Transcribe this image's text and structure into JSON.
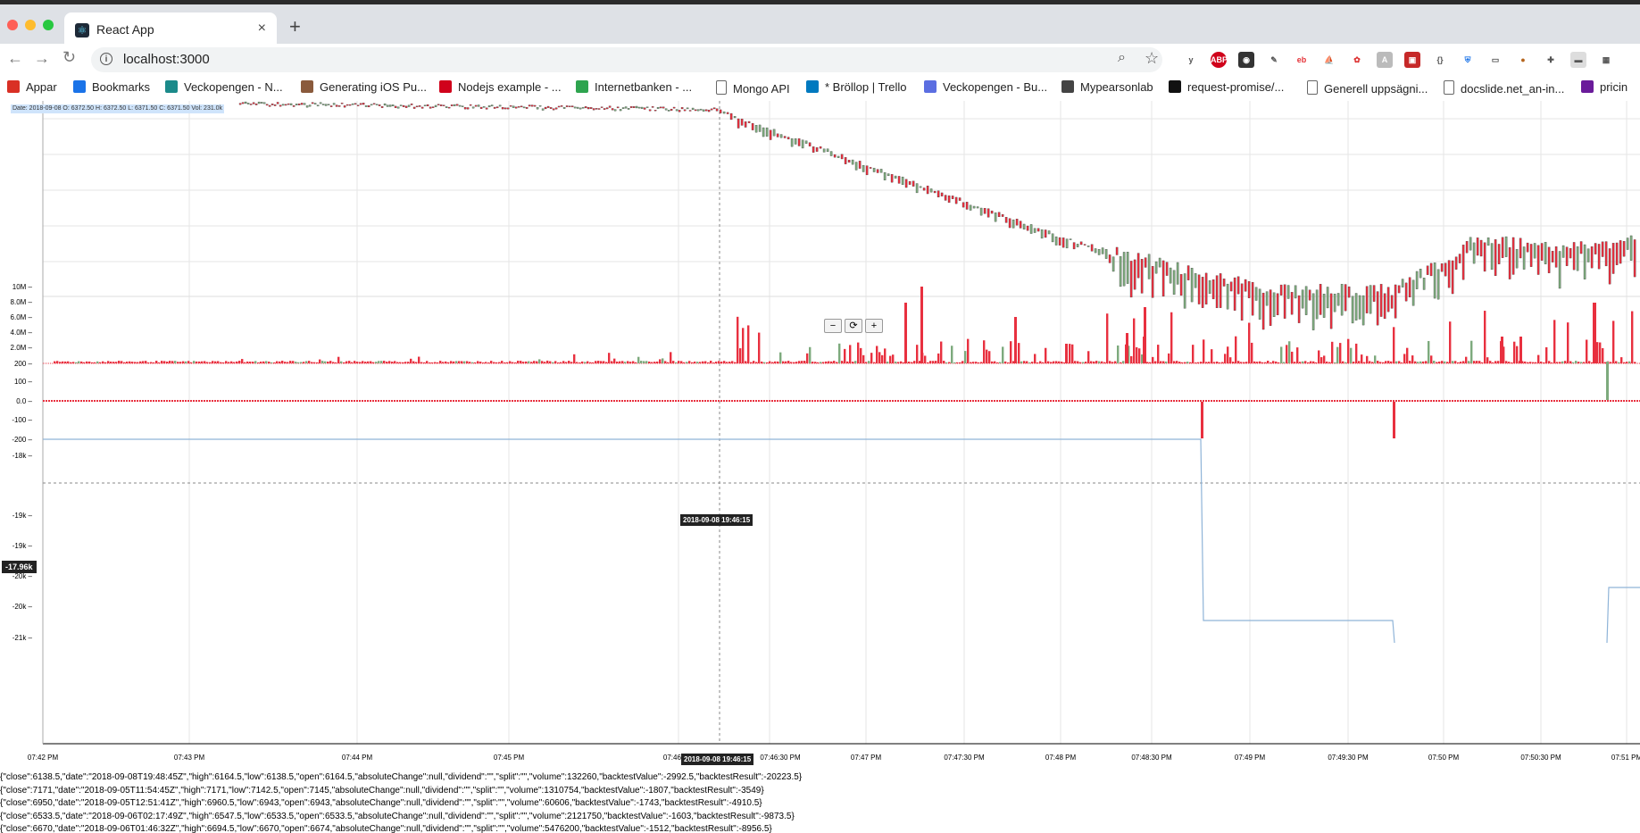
{
  "browser": {
    "tab_title": "React App",
    "new_tab_glyph": "+",
    "close_glyph": "×",
    "url": "localhost:3000",
    "bookmarks": [
      {
        "label": "Appar",
        "icon": "apps-grid-icon",
        "color": "#d93025"
      },
      {
        "label": "Bookmarks",
        "icon": "star-icon",
        "color": "#1a73e8"
      },
      {
        "label": "Veckopengen - N...",
        "icon": "veckopengen-icon",
        "color": "#1b8a8a"
      },
      {
        "label": "Generating iOS Pu...",
        "icon": "avatar-icon",
        "color": "#8a5a3c"
      },
      {
        "label": "Nodejs example - ...",
        "icon": "arc-icon",
        "color": "#d0021b"
      },
      {
        "label": "Internetbanken - ...",
        "icon": "bank-icon",
        "color": "#2ea44f"
      },
      {
        "label": "Mongo API",
        "icon": "page-icon",
        "color": "#ffffff"
      },
      {
        "label": "* Bröllop | Trello",
        "icon": "trello-icon",
        "color": "#0079bf"
      },
      {
        "label": "Veckopengen - Bu...",
        "icon": "spiral-icon",
        "color": "#5b6ee1"
      },
      {
        "label": "Mypearsonlab",
        "icon": "book-icon",
        "color": "#444444"
      },
      {
        "label": "request-promise/...",
        "icon": "github-icon",
        "color": "#111111"
      },
      {
        "label": "Generell uppsägni...",
        "icon": "page-icon",
        "color": "#ffffff"
      },
      {
        "label": "docslide.net_an-in...",
        "icon": "page-icon",
        "color": "#ffffff"
      },
      {
        "label": "pricin",
        "icon": "pricin-icon",
        "color": "#6a1b9a"
      }
    ]
  },
  "chart": {
    "ohlc_tooltip": "Date: 2018-09-08 O: 6372.50 H: 6372.50 L: 6371.50 C: 6371.50 Vol: 231.0k",
    "zoom_out": "−",
    "zoom_reset": "⟳",
    "zoom_in": "+",
    "crosshair_x_label": "2018-09-08 19:46:15",
    "crosshair_x_label_axis": "2018-09-08 19:46:15",
    "crosshair_y_label": "-17.96k",
    "colors": {
      "up": "#7daa7d",
      "down": "#e8303f",
      "line": "#8fb4d8",
      "grid": "#e6e6e6"
    }
  },
  "chart_data": [
    {
      "type": "candlestick",
      "title": "",
      "x_ticks": [
        "07:42 PM",
        "07:43 PM",
        "07:44 PM",
        "07:45 PM",
        "07:46 PM",
        "07:46:30 PM",
        "07:47 PM",
        "07:47:30 PM",
        "07:48 PM",
        "07:48:30 PM",
        "07:49 PM",
        "07:49:30 PM",
        "07:50 PM",
        "07:50:30 PM",
        "07:51 PM"
      ],
      "trend": "flat until ~07:46:15 PM, falling to a low near 07:49:30 PM, recovering toward 07:51 PM"
    },
    {
      "type": "bar",
      "series": "volume",
      "y_ticks": [
        "10M",
        "8.0M",
        "6.0M",
        "4.0M",
        "2.0M",
        "200"
      ],
      "ylim": [
        0,
        10000000
      ]
    },
    {
      "type": "bar",
      "series": "change",
      "y_ticks": [
        "100",
        "0.0",
        "-100",
        "-200"
      ],
      "ylim": [
        -200,
        100
      ]
    },
    {
      "type": "line",
      "series": "backtestResult",
      "y_ticks": [
        "-18k",
        "-19k",
        "-19k",
        "-20k",
        "-20k",
        "-21k"
      ],
      "steps": [
        {
          "x": "07:42 PM",
          "y": -17700
        },
        {
          "x": "07:48:40 PM",
          "y": -20450
        },
        {
          "x": "07:49:45 PM",
          "y": -21100
        },
        {
          "x": "07:51 PM",
          "y": -20350
        }
      ]
    }
  ],
  "log_lines": [
    "{\"close\":6138.5,\"date\":\"2018-09-08T19:48:45Z\",\"high\":6164.5,\"low\":6138.5,\"open\":6164.5,\"absoluteChange\":null,\"dividend\":\"\",\"split\":\"\",\"volume\":132260,\"backtestValue\":-2992.5,\"backtestResult\":-20223.5}",
    "{\"close\":7171,\"date\":\"2018-09-05T11:54:45Z\",\"high\":7171,\"low\":7142.5,\"open\":7145,\"absoluteChange\":null,\"dividend\":\"\",\"split\":\"\",\"volume\":1310754,\"backtestValue\":-1807,\"backtestResult\":-3549}",
    "{\"close\":6950,\"date\":\"2018-09-05T12:51:41Z\",\"high\":6960.5,\"low\":6943,\"open\":6943,\"absoluteChange\":null,\"dividend\":\"\",\"split\":\"\",\"volume\":60606,\"backtestValue\":-1743,\"backtestResult\":-4910.5}",
    "{\"close\":6533.5,\"date\":\"2018-09-06T02:17:49Z\",\"high\":6547.5,\"low\":6533.5,\"open\":6533.5,\"absoluteChange\":null,\"dividend\":\"\",\"split\":\"\",\"volume\":2121750,\"backtestValue\":-1603,\"backtestResult\":-9873.5}",
    "{\"close\":6670,\"date\":\"2018-09-06T01:46:32Z\",\"high\":6694.5,\"low\":6670,\"open\":6674,\"absoluteChange\":null,\"dividend\":\"\",\"split\":\"\",\"volume\":5476200,\"backtestValue\":-1512,\"backtestResult\":-8956.5}"
  ]
}
